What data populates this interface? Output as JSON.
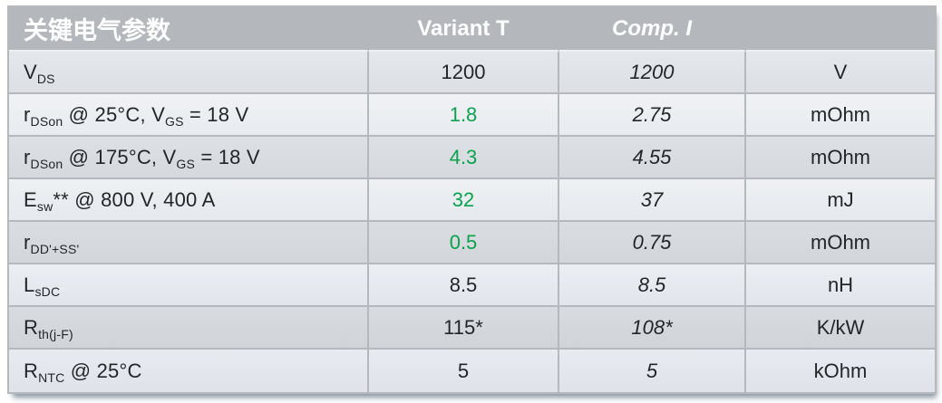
{
  "table": {
    "title": "关键电气参数",
    "columns": {
      "variant": "Variant T",
      "comp": "Comp. I",
      "unit": ""
    },
    "rows": [
      {
        "param": [
          [
            "t",
            "V"
          ],
          [
            "s",
            "DS"
          ]
        ],
        "variant": "1200",
        "green": false,
        "comp": "1200",
        "unit": "V"
      },
      {
        "param": [
          [
            "t",
            "r"
          ],
          [
            "s",
            "DSon"
          ],
          [
            "t",
            " @ 25°C, V"
          ],
          [
            "s",
            "GS"
          ],
          [
            "t",
            " = 18 V"
          ]
        ],
        "variant": "1.8",
        "green": true,
        "comp": "2.75",
        "unit": "mOhm"
      },
      {
        "param": [
          [
            "t",
            "r"
          ],
          [
            "s",
            "DSon"
          ],
          [
            "t",
            " @ 175°C, V"
          ],
          [
            "s",
            "GS"
          ],
          [
            "t",
            " = 18 V"
          ]
        ],
        "variant": "4.3",
        "green": true,
        "comp": "4.55",
        "unit": "mOhm"
      },
      {
        "param": [
          [
            "t",
            "E"
          ],
          [
            "s",
            "sw"
          ],
          [
            "t",
            "** @ 800 V, 400 A"
          ]
        ],
        "variant": "32",
        "green": true,
        "comp": "37",
        "unit": "mJ"
      },
      {
        "param": [
          [
            "t",
            "r"
          ],
          [
            "s",
            "DD'+SS'"
          ]
        ],
        "variant": "0.5",
        "green": true,
        "comp": "0.75",
        "unit": "mOhm"
      },
      {
        "param": [
          [
            "t",
            "L"
          ],
          [
            "s",
            "sDC"
          ]
        ],
        "variant": "8.5",
        "green": false,
        "comp": "8.5",
        "unit": "nH"
      },
      {
        "param": [
          [
            "t",
            "R"
          ],
          [
            "s",
            "th(j-F)"
          ]
        ],
        "variant": "115*",
        "green": false,
        "comp": "108*",
        "unit": "K/kW"
      },
      {
        "param": [
          [
            "t",
            "R"
          ],
          [
            "s",
            "NTC"
          ],
          [
            "t",
            " @ 25°C"
          ]
        ],
        "variant": "5",
        "green": false,
        "comp": "5",
        "unit": "kOhm"
      }
    ]
  },
  "colors": {
    "accent_green": "#0aa24d",
    "header_bg": "#b4b8bc",
    "grid_line": "#b5b9bd",
    "text": "#232629"
  }
}
